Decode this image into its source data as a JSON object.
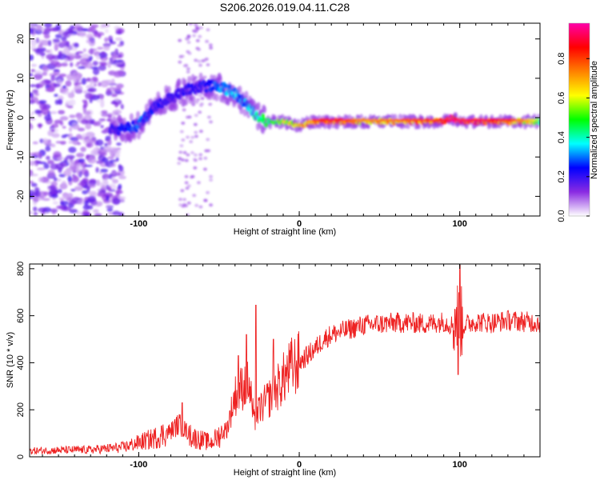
{
  "title": "S206.2026.019.04.11.C28",
  "chart_data": [
    {
      "type": "heatmap",
      "xlabel": "Height of straight line (km)",
      "ylabel": "Frequency (Hz)",
      "xlim": [
        -168,
        150
      ],
      "ylim": [
        -25,
        24
      ],
      "xticks": [
        -100,
        0,
        100
      ],
      "xtick_labels": [
        "-100",
        "0",
        "100"
      ],
      "yticks": [
        -20,
        -10,
        0,
        10,
        20
      ],
      "ytick_labels": [
        "-20",
        "-10",
        "0",
        "10",
        "20"
      ],
      "ridge": {
        "x": [
          -118,
          -110,
          -100,
          -90,
          -80,
          -70,
          -60,
          -50,
          -45,
          -40,
          -35,
          -30,
          -25,
          -20,
          -10,
          0,
          10,
          20,
          40,
          60,
          80,
          90,
          95,
          100,
          110,
          120,
          130,
          140,
          150
        ],
        "freq": [
          -3,
          -3,
          -2,
          3,
          5,
          7,
          8,
          8,
          7,
          6,
          4,
          2,
          0,
          -1,
          -1,
          -2,
          -1,
          -1,
          -1,
          -1,
          -1,
          -1,
          0,
          -1,
          -1,
          -1,
          -1,
          -1,
          -1
        ],
        "amplitude": [
          0.2,
          0.25,
          0.3,
          0.25,
          0.2,
          0.22,
          0.25,
          0.3,
          0.35,
          0.35,
          0.3,
          0.4,
          0.45,
          0.5,
          0.6,
          0.7,
          0.8,
          0.85,
          0.7,
          0.75,
          0.8,
          0.85,
          0.95,
          0.9,
          0.9,
          0.85,
          0.8,
          0.7,
          0.5
        ]
      },
      "noise_region": [
        -168,
        -120
      ],
      "colorbar": {
        "label": "Normalized spectral amplitude",
        "range": [
          0,
          0.98
        ],
        "ticks": [
          0.0,
          0.2,
          0.4,
          0.6,
          0.8
        ],
        "tick_labels": [
          "0.0",
          "0.2",
          "0.4",
          "0.6",
          "0.8"
        ],
        "colors": [
          "#ffffff",
          "#8a2be2",
          "#0000ff",
          "#00ffff",
          "#00ff00",
          "#ffff00",
          "#ff8000",
          "#ff0000",
          "#ff00aa"
        ]
      }
    },
    {
      "type": "line",
      "xlabel": "Height of straight line (km)",
      "ylabel": "SNR (10 * v/v)",
      "xlim": [
        -168,
        150
      ],
      "ylim": [
        0,
        820
      ],
      "xticks": [
        -100,
        0,
        100
      ],
      "xtick_labels": [
        "-100",
        "0",
        "100"
      ],
      "yticks": [
        0,
        200,
        400,
        600,
        800
      ],
      "ytick_labels": [
        "0",
        "200",
        "400",
        "600",
        "800"
      ],
      "color": "#ee2222",
      "series": [
        {
          "name": "SNR",
          "x": [
            -168,
            -150,
            -130,
            -110,
            -100,
            -90,
            -80,
            -75,
            -72,
            -65,
            -55,
            -45,
            -40,
            -35,
            -32,
            -30,
            -28,
            -25,
            -20,
            -15,
            -10,
            -5,
            0,
            5,
            10,
            15,
            20,
            30,
            40,
            50,
            60,
            70,
            80,
            90,
            95,
            98,
            100,
            102,
            110,
            120,
            130,
            140,
            150
          ],
          "y": [
            25,
            28,
            30,
            40,
            60,
            80,
            110,
            140,
            120,
            80,
            60,
            120,
            260,
            300,
            320,
            250,
            140,
            200,
            240,
            280,
            330,
            380,
            400,
            430,
            460,
            500,
            520,
            540,
            560,
            565,
            570,
            570,
            565,
            575,
            560,
            600,
            580,
            560,
            575,
            570,
            580,
            575,
            570
          ],
          "peaks": [
            {
              "x": -73,
              "y": 230
            },
            {
              "x": -38,
              "y": 430
            },
            {
              "x": -33,
              "y": 520
            },
            {
              "x": -27,
              "y": 645
            },
            {
              "x": -16,
              "y": 500
            },
            {
              "x": 100,
              "y": 815
            },
            {
              "x": 99,
              "y": 350
            }
          ]
        }
      ]
    }
  ]
}
